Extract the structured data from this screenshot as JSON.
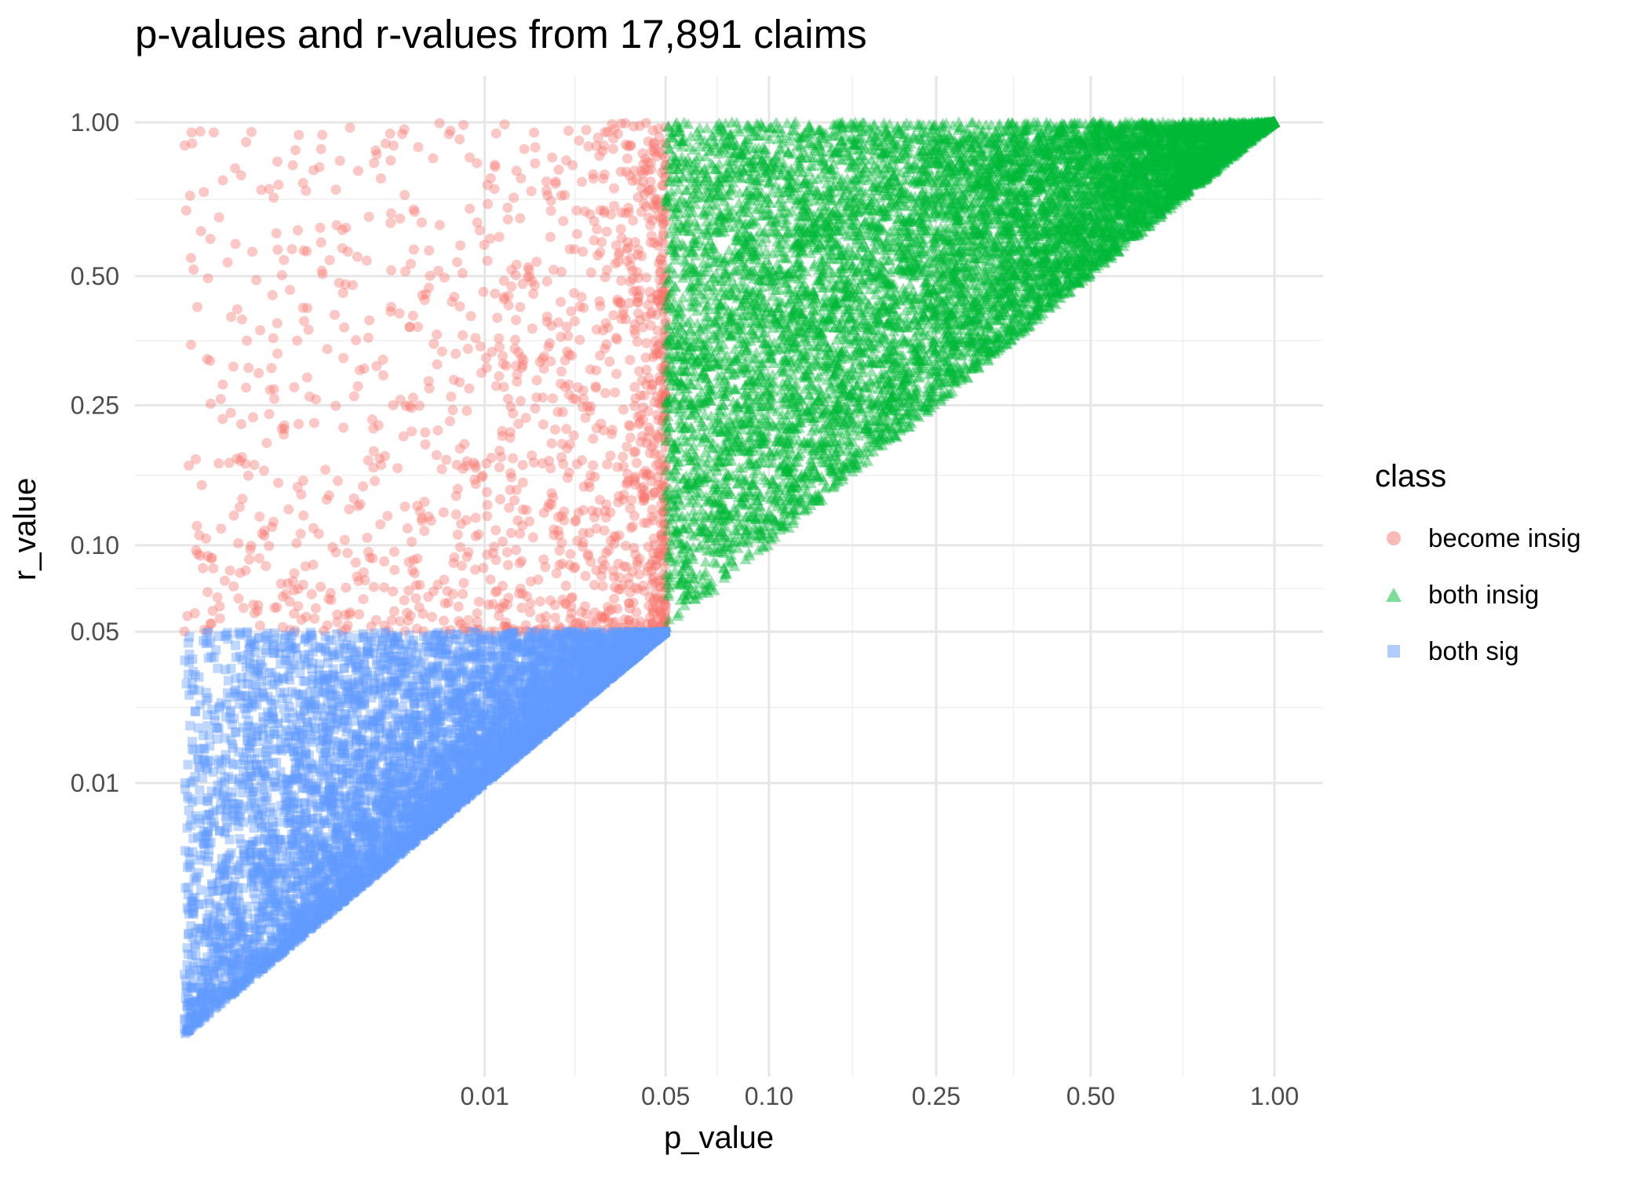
{
  "chart_data": {
    "type": "scatter",
    "title": "p-values and r-values from 17,891 claims",
    "xlabel": "p_value",
    "ylabel": "r_value",
    "x_scale": "fourth-root",
    "y_scale": "fourth-root",
    "xlim": [
      0,
      1
    ],
    "ylim": [
      0,
      1
    ],
    "x_ticks": [
      {
        "value": 0.01,
        "label": "0.01"
      },
      {
        "value": 0.05,
        "label": "0.05"
      },
      {
        "value": 0.1,
        "label": "0.10"
      },
      {
        "value": 0.25,
        "label": "0.25"
      },
      {
        "value": 0.5,
        "label": "0.50"
      },
      {
        "value": 1.0,
        "label": "1.00"
      }
    ],
    "y_ticks": [
      {
        "value": 0.01,
        "label": "0.01"
      },
      {
        "value": 0.05,
        "label": "0.05"
      },
      {
        "value": 0.1,
        "label": "0.10"
      },
      {
        "value": 0.25,
        "label": "0.25"
      },
      {
        "value": 0.5,
        "label": "0.50"
      },
      {
        "value": 1.0,
        "label": "1.00"
      }
    ],
    "grid": true,
    "legend": {
      "title": "class",
      "placement": "right"
    },
    "series": [
      {
        "name": "become insig",
        "marker": "circle",
        "color": "#F8766D",
        "alpha": 0.4,
        "point_count": 1400,
        "region": "p_value < 0.05 and 0.05 <= r_value <= 1.0",
        "sample": [
          [
            1e-05,
            0.95
          ],
          [
            3e-05,
            0.5
          ],
          [
            0.0001,
            0.12
          ],
          [
            0.0005,
            0.8
          ],
          [
            0.002,
            0.06
          ],
          [
            0.005,
            0.3
          ],
          [
            0.01,
            0.65
          ],
          [
            0.02,
            0.15
          ],
          [
            0.03,
            0.07
          ],
          [
            0.045,
            0.9
          ]
        ]
      },
      {
        "name": "both insig",
        "marker": "triangle",
        "color": "#00BA38",
        "alpha": 0.4,
        "point_count": 9500,
        "region": "p_value >= 0.05 and p_value <= r_value <= 1.0",
        "sample": [
          [
            0.05,
            0.06
          ],
          [
            0.06,
            0.5
          ],
          [
            0.08,
            0.9
          ],
          [
            0.1,
            0.6
          ],
          [
            0.2,
            0.3
          ],
          [
            0.3,
            0.95
          ],
          [
            0.5,
            0.7
          ],
          [
            0.8,
            0.9
          ],
          [
            1.0,
            1.0
          ]
        ]
      },
      {
        "name": "both sig",
        "marker": "square",
        "color": "#619CFF",
        "alpha": 0.4,
        "point_count": 7000,
        "region": "r_value < 0.05 and r_value >= p_value",
        "sample": [
          [
            1e-05,
            0.04
          ],
          [
            1e-05,
            2e-05
          ],
          [
            0.0001,
            0.0002
          ],
          [
            0.0005,
            0.01
          ],
          [
            0.001,
            0.003
          ],
          [
            0.005,
            0.02
          ],
          [
            0.01,
            0.03
          ],
          [
            0.02,
            0.04
          ],
          [
            0.04,
            0.045
          ]
        ]
      }
    ]
  }
}
